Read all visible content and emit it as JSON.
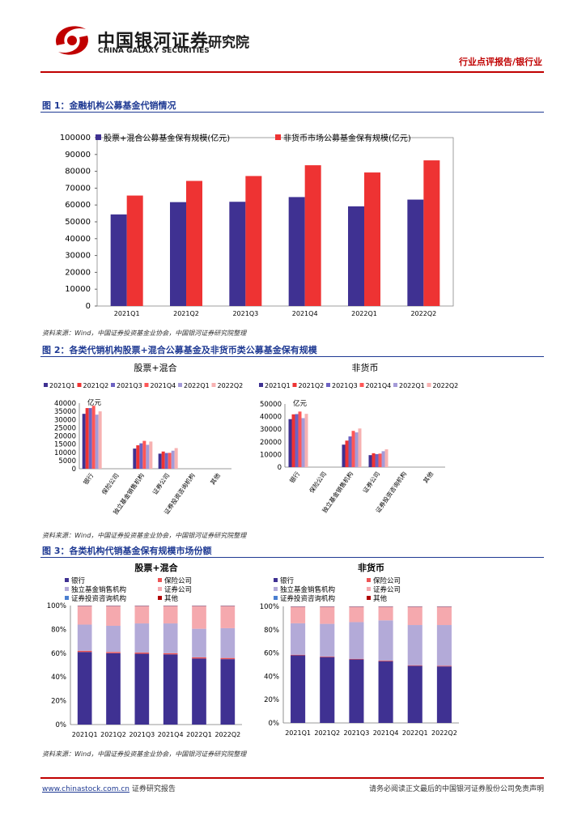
{
  "header": {
    "company_cn": "中国银河证券",
    "company_en": "CHINA GALAXY SECURITIES",
    "institute": "研究院",
    "category": "行业点评报告/银行业"
  },
  "fig1": {
    "title": "图 1：金融机构公募基金代销情况",
    "source": "资料来源：Wind，中国证券投资基金业协会，中国银河证券研究院整理"
  },
  "fig2": {
    "title": "图 2：各类代销机构股票+混合公募基金及非货币类公募基金保有规模",
    "source": "资料来源：Wind，中国证券投资基金业协会，中国银河证券研究院整理"
  },
  "fig3": {
    "title": "图 3：各类机构代销基金保有规模市场份额",
    "source": "资料来源：Wind，中国证券投资基金业协会，中国银河证券研究院整理"
  },
  "footer": {
    "url": "www.chinastock.com.cn",
    "url_suffix": " 证券研究报告",
    "disclaimer": "请务必阅读正文最后的中国银河证券股份公司免责声明"
  },
  "colors": {
    "s1": "#3f3192",
    "s2": "#ee3333",
    "s3": "#6d63c2",
    "s4": "#ff5757",
    "s5": "#a49bd8",
    "s6": "#f7b1b1",
    "bank": "#3f3192",
    "ins": "#ee5555",
    "ind": "#b3aad8",
    "sec": "#f5a9ae",
    "adv": "#4a7fd0",
    "oth": "#b00000"
  },
  "chart_data": [
    {
      "id": "fig1",
      "type": "bar",
      "categories": [
        "2021Q1",
        "2021Q2",
        "2021Q3",
        "2021Q4",
        "2022Q1",
        "2022Q2"
      ],
      "series": [
        {
          "name": "股票+混合公募基金保有规模(亿元)",
          "values": [
            54400,
            61700,
            61900,
            64700,
            59200,
            63200
          ]
        },
        {
          "name": "非货币市场公募基金保有规模(亿元)",
          "values": [
            65600,
            74300,
            77200,
            83600,
            79300,
            86500
          ]
        }
      ],
      "yticks": [
        "0",
        "10000",
        "20000",
        "30000",
        "40000",
        "50000",
        "60000",
        "70000",
        "80000",
        "90000",
        "100000"
      ],
      "ylim": [
        0,
        100000
      ]
    },
    {
      "id": "fig2a",
      "type": "bar",
      "title": "股票+混合",
      "unit": "亿元",
      "legend": [
        "2021Q1",
        "2021Q2",
        "2021Q3",
        "2021Q4",
        "2022Q1",
        "2022Q2"
      ],
      "categories": [
        "银行",
        "保险公司",
        "独立基金销售机构",
        "证券公司",
        "证券投资咨询机构",
        "其他"
      ],
      "series": [
        {
          "name": "2021Q1",
          "values": [
            33500,
            0,
            12300,
            9200,
            0,
            0
          ]
        },
        {
          "name": "2021Q2",
          "values": [
            37000,
            0,
            14300,
            10500,
            0,
            0
          ]
        },
        {
          "name": "2021Q3",
          "values": [
            37000,
            0,
            15500,
            9600,
            0,
            0
          ]
        },
        {
          "name": "2021Q4",
          "values": [
            38400,
            0,
            17000,
            9700,
            0,
            0
          ]
        },
        {
          "name": "2022Q1",
          "values": [
            33000,
            0,
            14600,
            11000,
            0,
            0
          ]
        },
        {
          "name": "2022Q2",
          "values": [
            35000,
            0,
            16600,
            12600,
            0,
            0
          ]
        }
      ],
      "yticks": [
        "0",
        "5000",
        "10000",
        "15000",
        "20000",
        "25000",
        "30000",
        "35000",
        "40000"
      ],
      "ylim": [
        0,
        40000
      ]
    },
    {
      "id": "fig2b",
      "type": "bar",
      "title": "非货币",
      "unit": "亿元",
      "legend": [
        "2021Q1",
        "2021Q2",
        "2021Q3",
        "2021Q4",
        "2022Q1",
        "2022Q2"
      ],
      "categories": [
        "银行",
        "保险公司",
        "独立基金销售机构",
        "证券公司",
        "证券投资咨询机构",
        "其他"
      ],
      "series": [
        {
          "name": "2021Q1",
          "values": [
            38000,
            0,
            17800,
            9500,
            0,
            0
          ]
        },
        {
          "name": "2021Q2",
          "values": [
            41800,
            0,
            21000,
            11000,
            0,
            0
          ]
        },
        {
          "name": "2021Q3",
          "values": [
            42000,
            0,
            24300,
            10300,
            0,
            0
          ]
        },
        {
          "name": "2021Q4",
          "values": [
            44000,
            0,
            28700,
            10700,
            0,
            0
          ]
        },
        {
          "name": "2022Q1",
          "values": [
            38800,
            0,
            27500,
            12600,
            0,
            0
          ]
        },
        {
          "name": "2022Q2",
          "values": [
            42200,
            0,
            30600,
            14100,
            0,
            0
          ]
        }
      ],
      "yticks": [
        "0",
        "10000",
        "20000",
        "30000",
        "40000",
        "50000"
      ],
      "ylim": [
        0,
        50000
      ]
    },
    {
      "id": "fig3a",
      "type": "bar",
      "stacked": true,
      "title": "股票+混合",
      "categories": [
        "2021Q1",
        "2021Q2",
        "2021Q3",
        "2021Q4",
        "2022Q1",
        "2022Q2"
      ],
      "series": [
        {
          "name": "银行",
          "values": [
            61,
            60,
            59.5,
            59,
            55.5,
            55
          ]
        },
        {
          "name": "保险公司",
          "values": [
            1,
            1,
            1,
            1,
            1,
            1
          ]
        },
        {
          "name": "独立基金销售机构",
          "values": [
            22,
            22,
            24.5,
            25,
            24,
            25
          ]
        },
        {
          "name": "证券公司",
          "values": [
            15.5,
            16.5,
            14.5,
            14.5,
            19,
            18.5
          ]
        },
        {
          "name": "证券投资咨询机构",
          "values": [
            0.3,
            0.3,
            0.3,
            0.3,
            0.3,
            0.3
          ]
        },
        {
          "name": "其他",
          "values": [
            0.2,
            0.2,
            0.2,
            0.2,
            0.2,
            0.2
          ]
        }
      ],
      "yticks": [
        "0%",
        "20%",
        "40%",
        "60%",
        "80%",
        "100%"
      ],
      "ylim": [
        0,
        100
      ]
    },
    {
      "id": "fig3b",
      "type": "bar",
      "stacked": true,
      "title": "非货币",
      "categories": [
        "2021Q1",
        "2021Q2",
        "2021Q3",
        "2021Q4",
        "2022Q1",
        "2022Q2"
      ],
      "series": [
        {
          "name": "银行",
          "values": [
            58,
            56.5,
            54.5,
            53,
            49,
            48.5
          ]
        },
        {
          "name": "保险公司",
          "values": [
            0.5,
            0.5,
            0.5,
            0.5,
            0.5,
            0.5
          ]
        },
        {
          "name": "独立基金销售机构",
          "values": [
            27,
            28,
            31.5,
            34.5,
            34.5,
            35
          ]
        },
        {
          "name": "证券公司",
          "values": [
            14,
            14.5,
            13,
            11.5,
            15.5,
            15.5
          ]
        },
        {
          "name": "证券投资咨询机构",
          "values": [
            0.3,
            0.3,
            0.3,
            0.3,
            0.3,
            0.3
          ]
        },
        {
          "name": "其他",
          "values": [
            0.2,
            0.2,
            0.2,
            0.2,
            0.2,
            0.2
          ]
        }
      ],
      "yticks": [
        "0%",
        "20%",
        "40%",
        "60%",
        "80%",
        "100%"
      ],
      "ylim": [
        0,
        100
      ]
    }
  ]
}
